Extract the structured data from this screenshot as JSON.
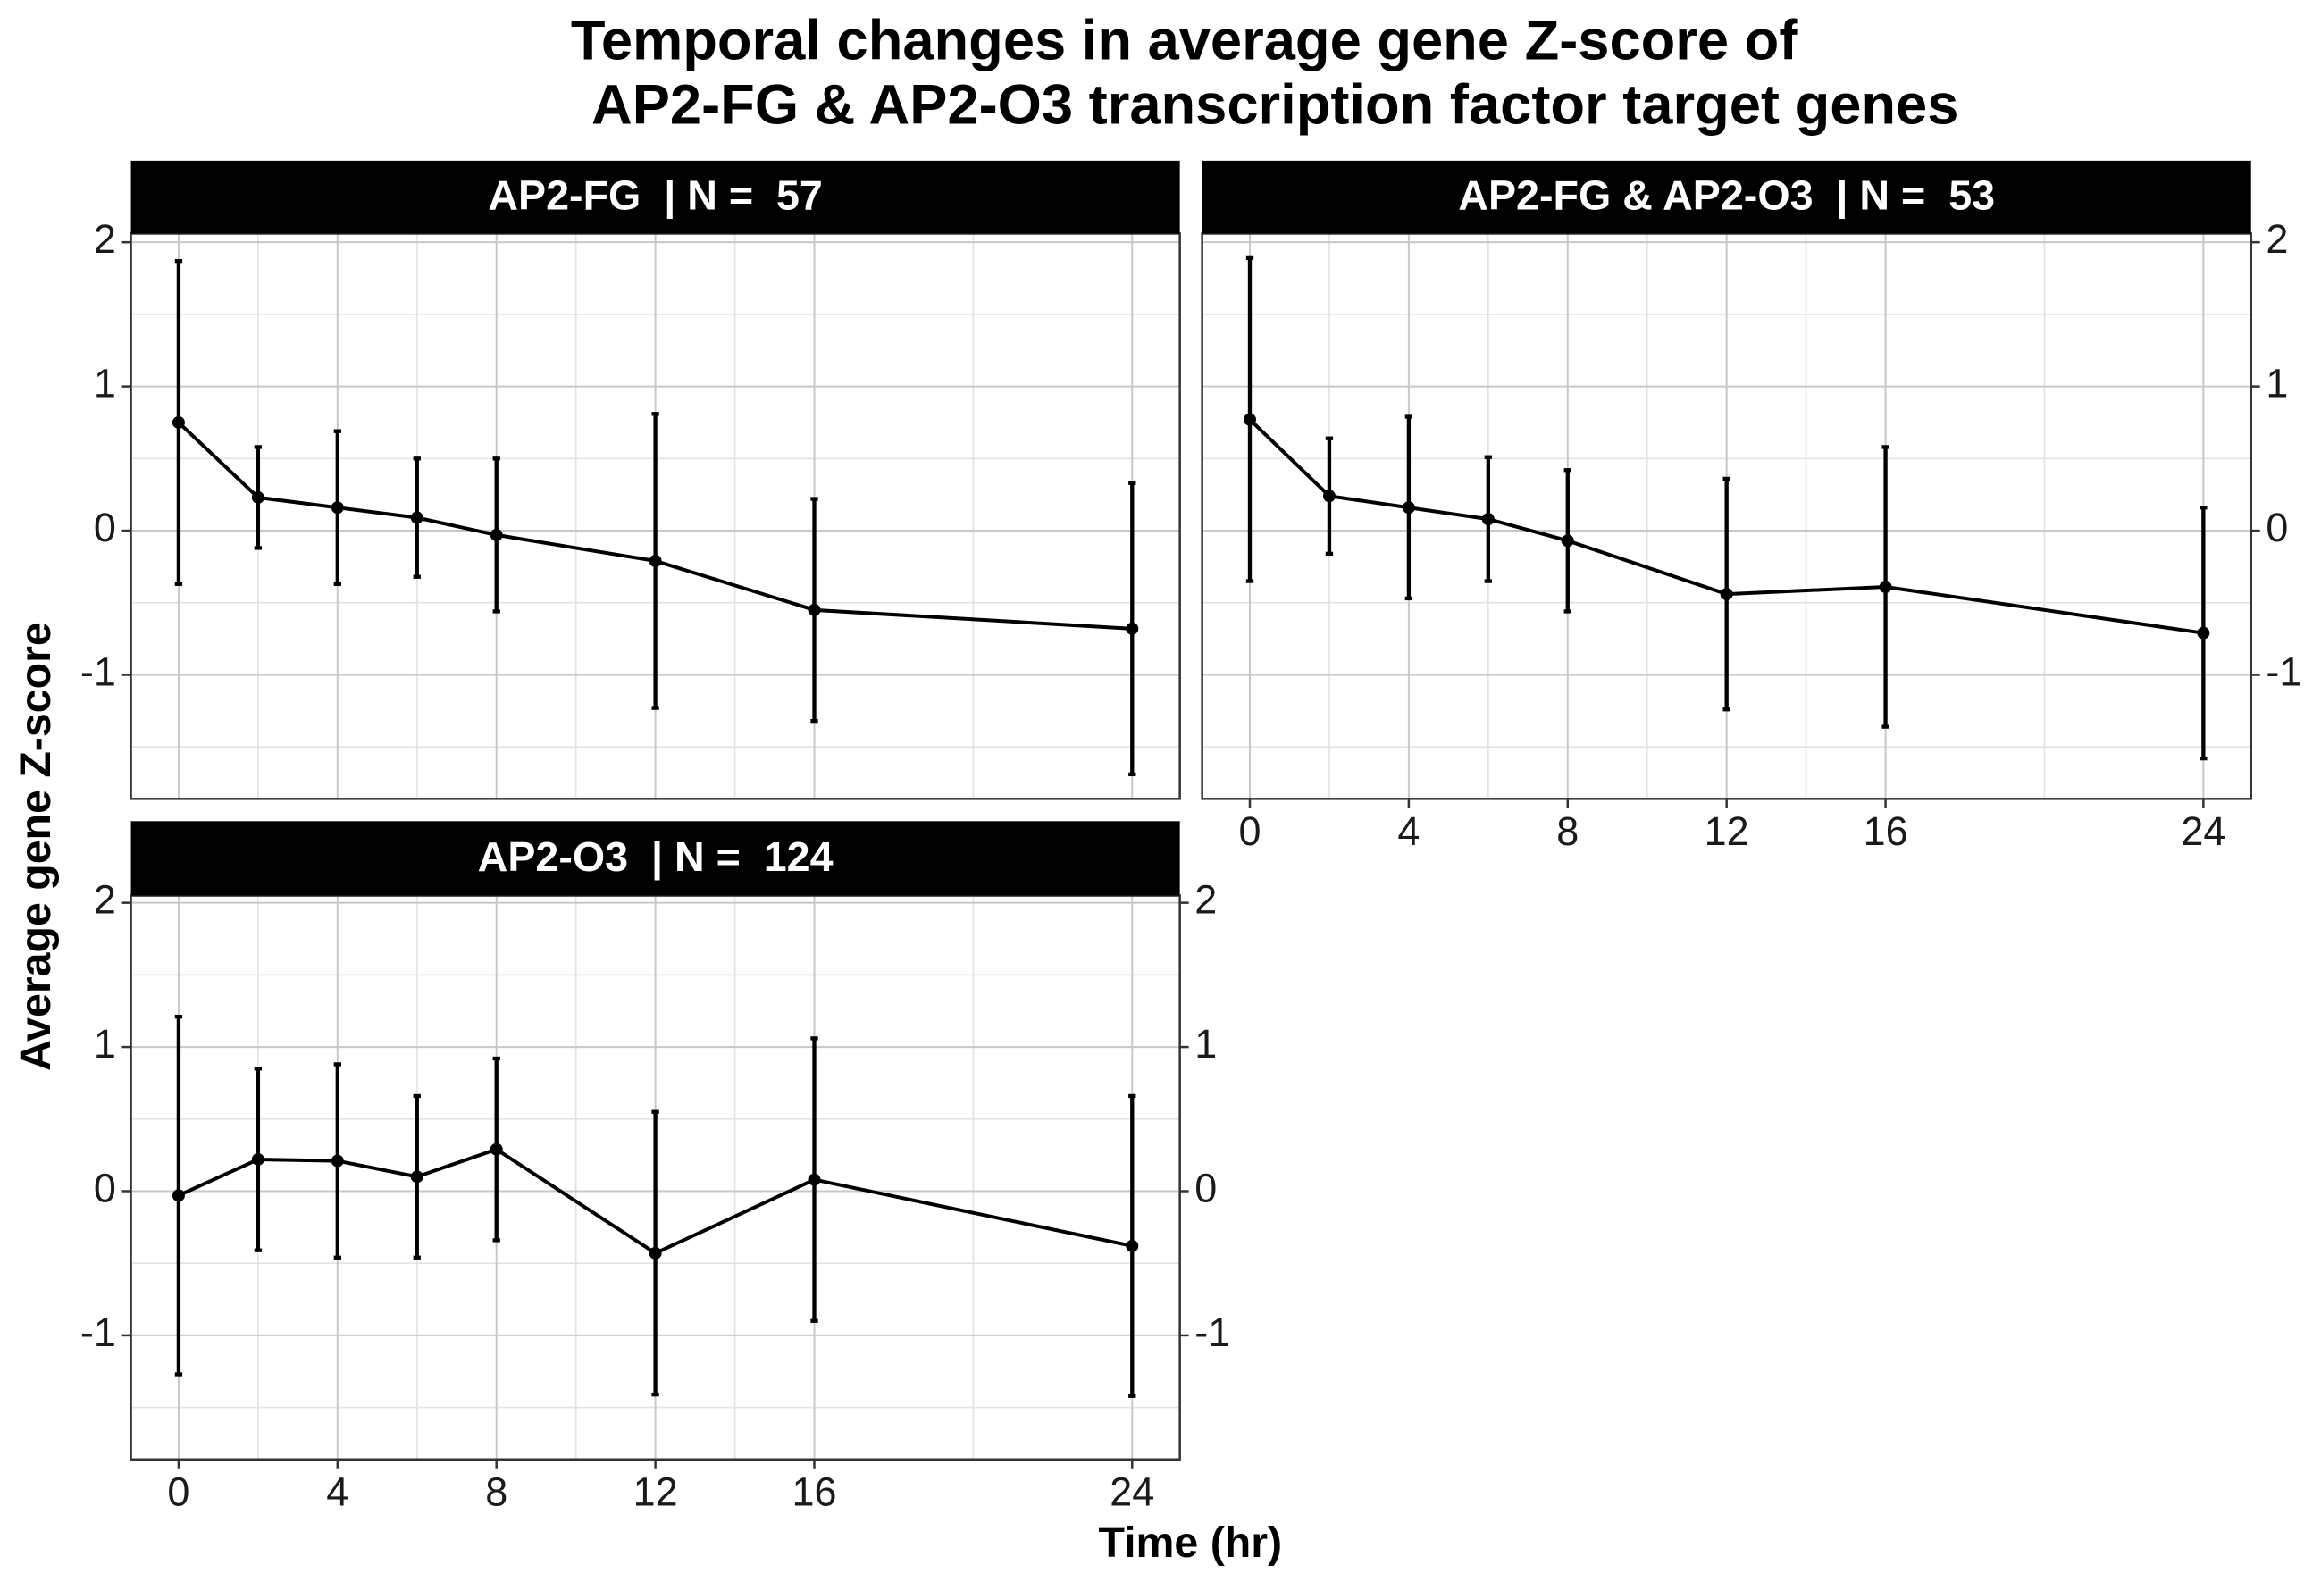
{
  "title": [
    "Temporal changes in average gene Z-score of",
    "AP2-FG & AP2-O3 transcription factor target genes"
  ],
  "ylabel": "Average gene Z-score",
  "xlabel": "Time (hr)",
  "chart_data": [
    {
      "type": "line",
      "title": "AP2-FG  | N =  57",
      "x": [
        0,
        2,
        4,
        6,
        8,
        12,
        16,
        24
      ],
      "series": [
        {
          "color": "#000000",
          "values": [
            0.75,
            0.23,
            0.16,
            0.09,
            -0.03,
            -0.21,
            -0.55,
            -0.68
          ],
          "errors": [
            1.12,
            0.35,
            0.53,
            0.41,
            0.53,
            1.02,
            0.77,
            1.01
          ]
        }
      ],
      "xlim": [
        -1.2,
        25.2
      ],
      "ylim": [
        -1.86,
        2.06
      ],
      "xticks": [
        0,
        4,
        8,
        12,
        16,
        24
      ],
      "yticks": [
        -1,
        0,
        1,
        2
      ],
      "minor_xticks": [
        2,
        6,
        10,
        14,
        20
      ],
      "minor_yticks": [
        -1.5,
        -0.5,
        0.5,
        1.5
      ],
      "x_axis_labels": false,
      "y_axis_sides": [
        "left"
      ],
      "grid": true
    },
    {
      "type": "line",
      "title": "AP2-FG & AP2-O3  | N =  53",
      "x": [
        0,
        2,
        4,
        6,
        8,
        12,
        16,
        24
      ],
      "series": [
        {
          "color": "#000000",
          "values": [
            0.77,
            0.24,
            0.16,
            0.08,
            -0.07,
            -0.44,
            -0.39,
            -0.71
          ],
          "errors": [
            1.12,
            0.4,
            0.63,
            0.43,
            0.49,
            0.8,
            0.97,
            0.87
          ]
        }
      ],
      "xlim": [
        -1.2,
        25.2
      ],
      "ylim": [
        -1.86,
        2.06
      ],
      "xticks": [
        0,
        4,
        8,
        12,
        16,
        24
      ],
      "yticks": [
        -1,
        0,
        1,
        2
      ],
      "minor_xticks": [
        2,
        6,
        10,
        14,
        20
      ],
      "minor_yticks": [
        -1.5,
        -0.5,
        0.5,
        1.5
      ],
      "x_axis_labels": true,
      "y_axis_sides": [
        "right"
      ],
      "grid": true
    },
    {
      "type": "line",
      "title": "AP2-O3  | N =  124",
      "x": [
        0,
        2,
        4,
        6,
        8,
        12,
        16,
        24
      ],
      "series": [
        {
          "color": "#000000",
          "values": [
            -0.03,
            0.22,
            0.21,
            0.1,
            0.29,
            -0.43,
            0.08,
            -0.38
          ],
          "errors": [
            1.24,
            0.63,
            0.67,
            0.56,
            0.63,
            0.98,
            0.98,
            1.04
          ]
        }
      ],
      "xlim": [
        -1.2,
        25.2
      ],
      "ylim": [
        -1.86,
        2.05
      ],
      "xticks": [
        0,
        4,
        8,
        12,
        16,
        24
      ],
      "yticks": [
        -1,
        0,
        1,
        2
      ],
      "minor_xticks": [
        2,
        6,
        10,
        14,
        20
      ],
      "minor_yticks": [
        -1.5,
        -0.5,
        0.5,
        1.5
      ],
      "x_axis_labels": true,
      "y_axis_sides": [
        "left",
        "right"
      ],
      "grid": true
    }
  ]
}
